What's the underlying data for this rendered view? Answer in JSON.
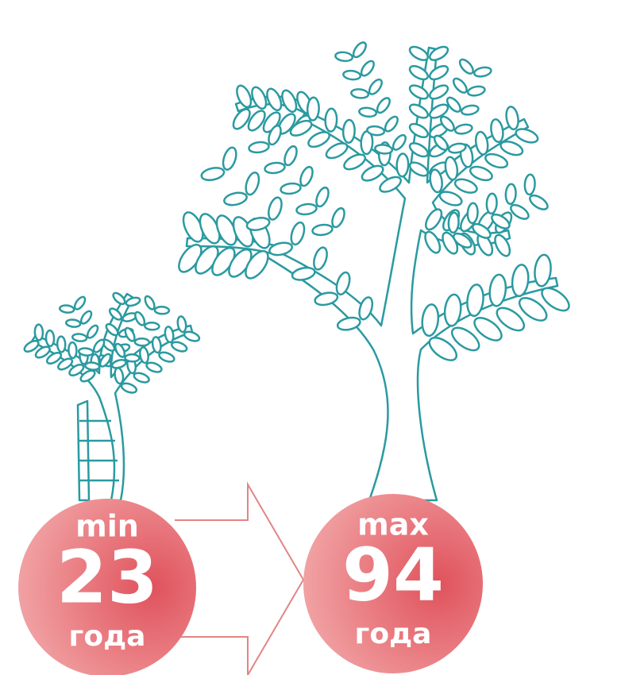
{
  "left": {
    "label": "min",
    "value": "23",
    "unit": "года"
  },
  "right": {
    "label": "max",
    "value": "94",
    "unit": "года"
  }
}
